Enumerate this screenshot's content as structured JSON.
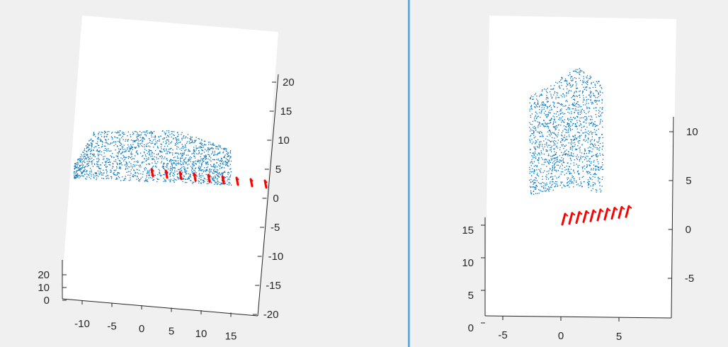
{
  "colors": {
    "points": "#0072bd",
    "cameras": "#ff0000",
    "figure_bg": "#f0f0f0",
    "axes_bg": "#ffffff",
    "divider": "#7fb3d5"
  },
  "chart_data": [
    {
      "type": "scatter",
      "subtype": "3d point cloud with camera trajectory",
      "title": "",
      "xlabel": "",
      "ylabel": "",
      "zlabel": "",
      "x_ticks": [
        "-10",
        "-5",
        "0",
        "5",
        "10",
        "15"
      ],
      "y_ticks": [
        "20",
        "10",
        "0"
      ],
      "z_ticks": [
        "20",
        "15",
        "10",
        "5",
        "0",
        "-5",
        "-10",
        "-15",
        "-20"
      ],
      "zlim": [
        -20,
        20
      ],
      "series": [
        {
          "kind": "points",
          "color": "#0072bd",
          "description_shape": "car"
        },
        {
          "kind": "cameras",
          "color": "#ff0000",
          "count": 9
        }
      ]
    },
    {
      "type": "scatter",
      "subtype": "3d point cloud with camera trajectory",
      "title": "",
      "xlabel": "",
      "ylabel": "",
      "zlabel": "",
      "x_ticks": [
        "-5",
        "0",
        "5"
      ],
      "y_ticks": [
        "15",
        "10",
        "5",
        "0"
      ],
      "z_ticks": [
        "10",
        "5",
        "0",
        "-5"
      ],
      "zlim": [
        -8,
        12
      ],
      "series": [
        {
          "kind": "points",
          "color": "#0072bd",
          "description_shape": "building corner"
        },
        {
          "kind": "cameras",
          "color": "#ff0000",
          "count": 10
        }
      ]
    }
  ]
}
